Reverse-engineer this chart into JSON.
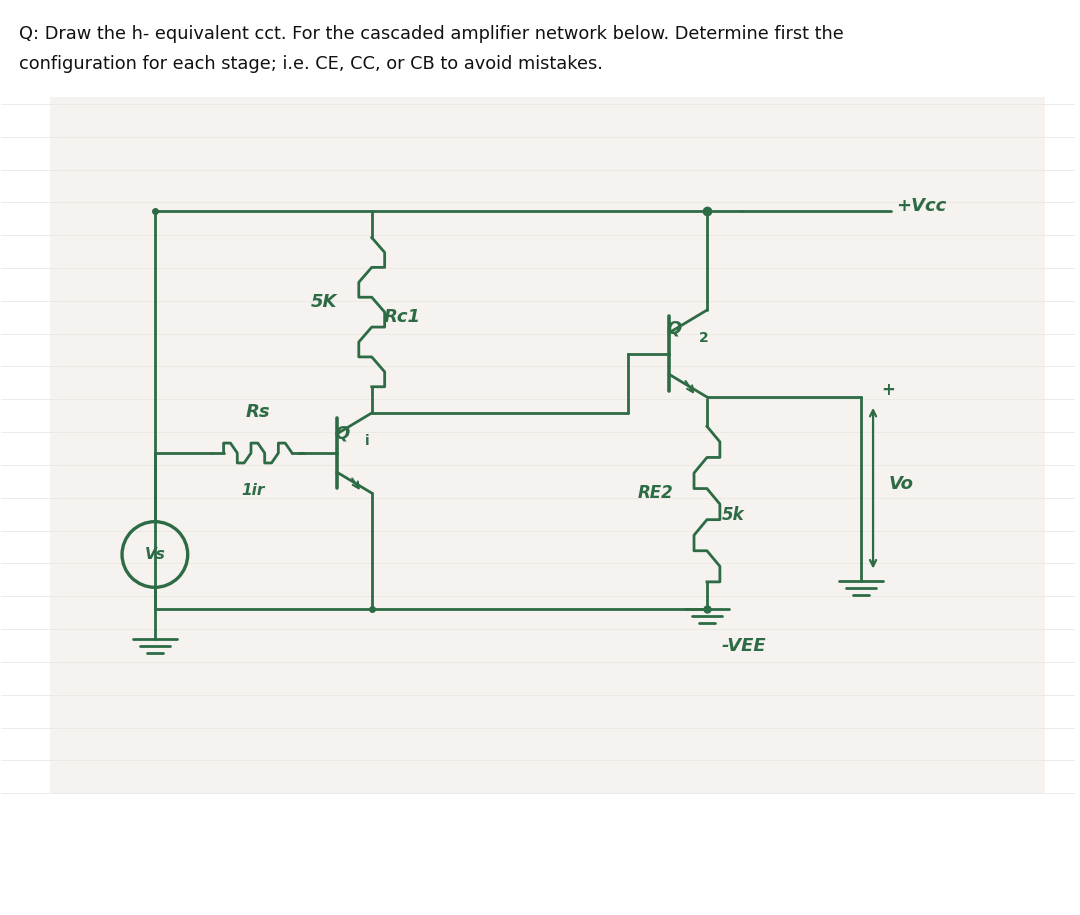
{
  "title_line1": "Q: Draw the h- equivalent cct. For the cascaded amplifier network below. Determine first the",
  "title_line2": "configuration for each stage; i.e. CE, CC, or CB to avoid mistakes.",
  "bg_color": "#ffffff",
  "paper_color": "#f0ede8",
  "circuit_color": "#2d6b45",
  "text_color": "#111111",
  "label_Rs": "Rs",
  "label_1ir": "1ir",
  "label_5k_rc1": "5K",
  "label_Rc1": "Rc1",
  "label_Q1": "Q",
  "label_Q1_sub": "i",
  "label_Q2": "Q",
  "label_Q2_sub": "2",
  "label_RE2": "RE2",
  "label_5k_re2": "5k",
  "label_Vcc": "+Vcc",
  "label_VEE": "-VEE",
  "label_Vo": "Vo",
  "label_Vs": "Vs",
  "label_plus_vo": "+",
  "grid_color": "#c5c0b5",
  "grid_alpha": 0.45
}
